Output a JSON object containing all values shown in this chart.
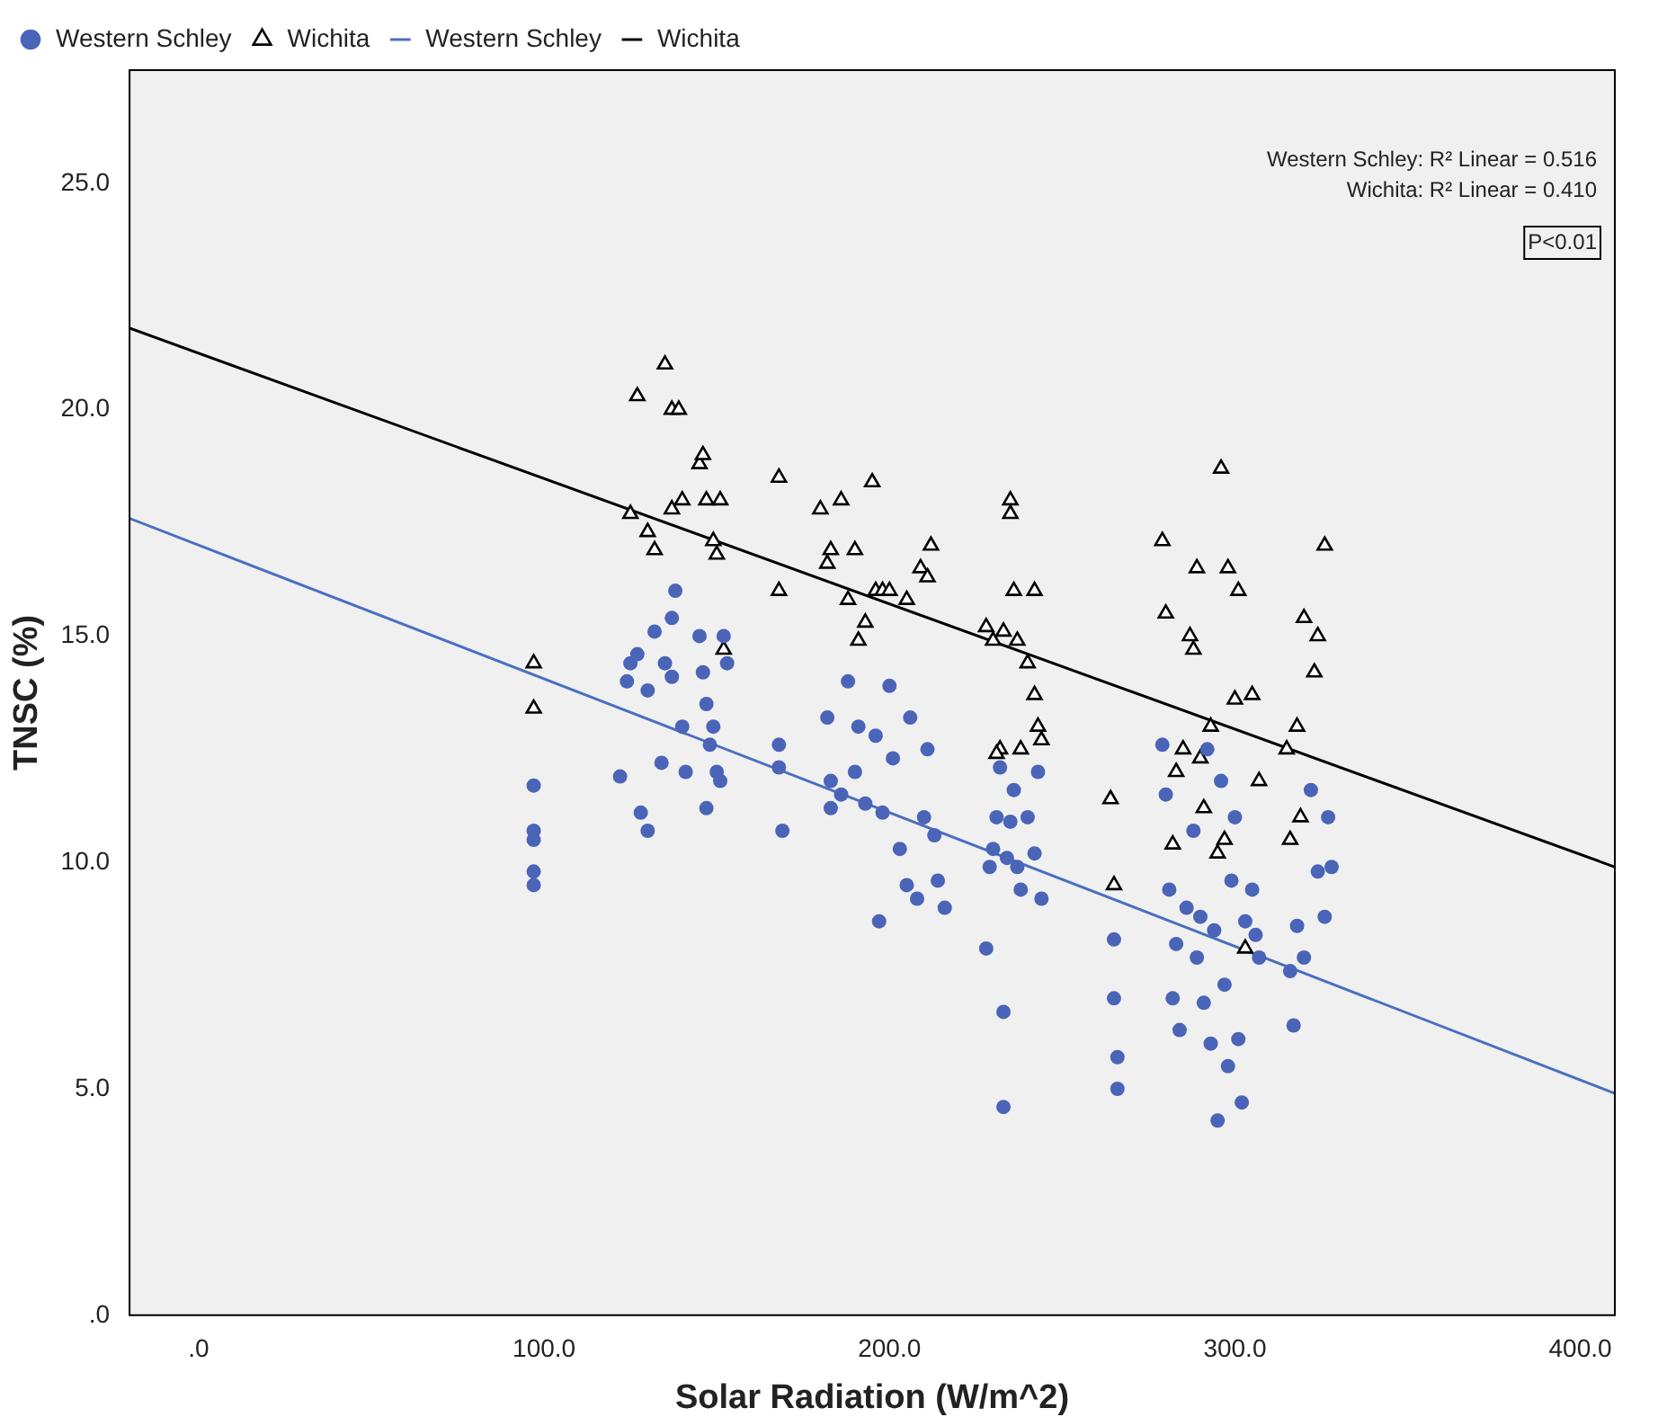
{
  "chart_data": {
    "type": "scatter",
    "xlabel": "Solar Radiation (W/m^2)",
    "ylabel": "TNSC (%)",
    "xlim": [
      -20,
      410
    ],
    "xticks": [
      {
        "value": 0,
        "label": ".0"
      },
      {
        "value": 100,
        "label": "100.0"
      },
      {
        "value": 200,
        "label": "200.0"
      },
      {
        "value": 300,
        "label": "300.0"
      },
      {
        "value": 400,
        "label": "400.0"
      }
    ],
    "ylim": [
      0,
      27.5
    ],
    "yticks": [
      {
        "value": 0,
        "label": ".0"
      },
      {
        "value": 5,
        "label": "5.0"
      },
      {
        "value": 10,
        "label": "10.0"
      },
      {
        "value": 15,
        "label": "15.0"
      },
      {
        "value": 20,
        "label": "20.0"
      },
      {
        "value": 25,
        "label": "25.0"
      }
    ],
    "grid": false,
    "legend": "top left",
    "annotations": [
      "Western Schley: R² Linear = 0.516",
      "Wichita: R² Linear = 0.410",
      "P<0.01"
    ],
    "series": [
      {
        "name": "Western Schley",
        "marker": "circle",
        "color": "#4a64b8",
        "x": [
          97,
          97,
          97,
          97,
          97,
          122,
          124,
          125,
          127,
          128,
          130,
          130,
          132,
          134,
          135,
          137,
          137,
          138,
          140,
          141,
          145,
          146,
          147,
          147,
          148,
          149,
          150,
          151,
          152,
          153,
          168,
          168,
          169,
          182,
          183,
          183,
          186,
          188,
          190,
          191,
          193,
          196,
          197,
          198,
          200,
          201,
          203,
          205,
          206,
          208,
          210,
          211,
          213,
          214,
          216,
          228,
          229,
          230,
          231,
          232,
          233,
          233,
          234,
          235,
          236,
          237,
          238,
          240,
          242,
          243,
          244,
          265,
          265,
          266,
          266,
          279,
          280,
          281,
          282,
          283,
          284,
          286,
          288,
          289,
          290,
          291,
          292,
          293,
          294,
          295,
          296,
          297,
          298,
          299,
          300,
          301,
          302,
          303,
          305,
          306,
          307,
          316,
          317,
          318,
          320,
          322,
          324,
          326,
          327,
          328
        ],
        "values": [
          11.7,
          10.7,
          10.5,
          9.8,
          9.5,
          11.9,
          14.0,
          14.4,
          14.6,
          11.1,
          13.8,
          10.7,
          15.1,
          12.2,
          14.4,
          14.1,
          15.4,
          16.0,
          13.0,
          12.0,
          15.0,
          14.2,
          13.5,
          11.2,
          12.6,
          13.0,
          12.0,
          11.8,
          15.0,
          14.4,
          12.6,
          12.1,
          10.7,
          13.2,
          11.8,
          11.2,
          11.5,
          14.0,
          12.0,
          13.0,
          11.3,
          12.8,
          8.7,
          11.1,
          13.9,
          12.3,
          10.3,
          9.5,
          13.2,
          9.2,
          11.0,
          12.5,
          10.6,
          9.6,
          9.0,
          8.1,
          9.9,
          10.3,
          11.0,
          12.1,
          6.7,
          4.6,
          10.1,
          10.9,
          11.6,
          9.9,
          9.4,
          11.0,
          10.2,
          12.0,
          9.2,
          8.3,
          7.0,
          5.7,
          5.0,
          12.6,
          11.5,
          9.4,
          7.0,
          8.2,
          6.3,
          9.0,
          10.7,
          7.9,
          8.8,
          6.9,
          12.5,
          6.0,
          8.5,
          4.3,
          11.8,
          7.3,
          5.5,
          9.6,
          11.0,
          6.1,
          4.7,
          8.7,
          9.4,
          8.4,
          7.9,
          7.6,
          6.4,
          8.6,
          7.9,
          11.6,
          9.8,
          8.8,
          11.0,
          9.9
        ]
      },
      {
        "name": "Wichita",
        "marker": "triangle",
        "color": "#000000",
        "x": [
          97,
          97,
          125,
          127,
          130,
          132,
          135,
          137,
          139,
          137,
          140,
          145,
          146,
          147,
          149,
          150,
          151,
          152,
          168,
          168,
          180,
          182,
          183,
          186,
          188,
          190,
          191,
          193,
          195,
          196,
          198,
          200,
          205,
          209,
          211,
          212,
          228,
          230,
          232,
          233,
          235,
          235,
          236,
          237,
          238,
          240,
          242,
          242,
          243,
          244,
          231,
          264,
          265,
          279,
          280,
          282,
          283,
          285,
          287,
          288,
          289,
          290,
          291,
          293,
          295,
          296,
          297,
          298,
          300,
          301,
          303,
          305,
          307,
          315,
          316,
          318,
          319,
          320,
          323,
          324,
          326
        ],
        "values": [
          14.4,
          13.4,
          17.7,
          20.3,
          17.3,
          16.9,
          21.0,
          20.0,
          20.0,
          17.8,
          18.0,
          18.8,
          19.0,
          18.0,
          17.1,
          16.8,
          18.0,
          14.7,
          18.5,
          16.0,
          17.8,
          16.6,
          16.9,
          18.0,
          15.8,
          16.9,
          14.9,
          15.3,
          18.4,
          16.0,
          16.0,
          16.0,
          15.8,
          16.5,
          16.3,
          17.0,
          15.2,
          14.9,
          12.5,
          15.1,
          18.0,
          17.7,
          16.0,
          14.9,
          12.5,
          14.4,
          16.0,
          13.7,
          13.0,
          12.7,
          12.4,
          11.4,
          9.5,
          17.1,
          15.5,
          10.4,
          12.0,
          12.5,
          15.0,
          14.7,
          16.5,
          12.3,
          11.2,
          13.0,
          10.2,
          18.7,
          10.5,
          16.5,
          13.6,
          16.0,
          8.1,
          13.7,
          11.8,
          12.5,
          10.5,
          13.0,
          11.0,
          15.4,
          14.2,
          15.0,
          17.0
        ]
      },
      {
        "name": "Western Schley",
        "type": "line",
        "marker": "none",
        "color": "#4a6fc0",
        "x": [
          -20,
          410
        ],
        "values": [
          17.6,
          4.9
        ]
      },
      {
        "name": "Wichita",
        "type": "line",
        "marker": "none",
        "color": "#000000",
        "x": [
          -20,
          410
        ],
        "values": [
          21.8,
          9.9
        ]
      }
    ]
  }
}
